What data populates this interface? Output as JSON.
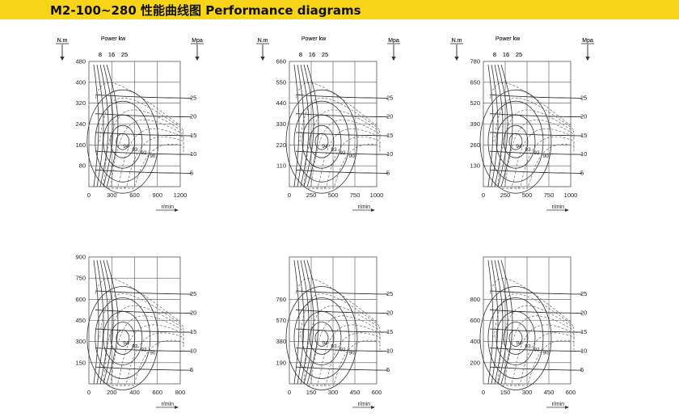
{
  "title": "M2-100~280 性能曲线图  Performance diagrams",
  "colors": {
    "header_bg": "#f7d417",
    "grid": "#555555",
    "solid_curve": "#333333",
    "dashed_curve": "#666666"
  },
  "chart_data": [
    {
      "type": "line",
      "y_unit": "N.m",
      "power_label": "Power kw",
      "pressure_unit": "Mpa",
      "x_unit": "r/min",
      "x_ticks": [
        0,
        300,
        600,
        900,
        1200
      ],
      "xlim": [
        0,
        1200
      ],
      "y_ticks": [
        80,
        160,
        240,
        320,
        400,
        480
      ],
      "ylim": [
        0,
        480
      ],
      "pressure_ticks": [
        5,
        10,
        15,
        20,
        25
      ],
      "power_ticks": [
        8,
        16,
        25
      ],
      "efficiency_labels": [
        94,
        93,
        92,
        90
      ]
    },
    {
      "type": "line",
      "y_unit": "N.m",
      "power_label": "Power kw",
      "pressure_unit": "Mpa",
      "x_unit": "r/min",
      "x_ticks": [
        0,
        250,
        500,
        750,
        1000
      ],
      "xlim": [
        0,
        1000
      ],
      "y_ticks": [
        110,
        220,
        330,
        440,
        550,
        660
      ],
      "ylim": [
        0,
        660
      ],
      "pressure_ticks": [
        5,
        10,
        15,
        20,
        25
      ],
      "power_ticks": [
        8,
        16,
        25
      ],
      "efficiency_labels": [
        94,
        93,
        92,
        90
      ]
    },
    {
      "type": "line",
      "y_unit": "N.m",
      "power_label": "Power kw",
      "pressure_unit": "Mpa",
      "x_unit": "r/min",
      "x_ticks": [
        0,
        250,
        500,
        750,
        1000
      ],
      "xlim": [
        0,
        1000
      ],
      "y_ticks": [
        130,
        260,
        390,
        520,
        650,
        780
      ],
      "ylim": [
        0,
        780
      ],
      "pressure_ticks": [
        5,
        10,
        15,
        20,
        25
      ],
      "power_ticks": [
        8,
        16,
        25
      ],
      "efficiency_labels": [
        94,
        93,
        92,
        90
      ]
    },
    {
      "type": "line",
      "y_unit": "N.m",
      "power_label": "Power kw",
      "pressure_unit": "Mpa",
      "x_unit": "r/min",
      "x_ticks": [
        0,
        200,
        400,
        600,
        800
      ],
      "xlim": [
        0,
        800
      ],
      "y_ticks": [
        150,
        300,
        450,
        600,
        750,
        900
      ],
      "ylim": [
        0,
        900
      ],
      "pressure_ticks": [
        5,
        10,
        15,
        20,
        25
      ],
      "power_ticks": [
        8,
        16,
        25
      ],
      "efficiency_labels": [
        94,
        93,
        92,
        90
      ]
    },
    {
      "type": "line",
      "y_unit": "N.m",
      "power_label": "Power kw",
      "pressure_unit": "Mpa",
      "x_unit": "r/min",
      "x_ticks": [
        0,
        150,
        300,
        450,
        600
      ],
      "xlim": [
        0,
        600
      ],
      "y_ticks": [
        190,
        380,
        570,
        760
      ],
      "ylim": [
        0,
        1140
      ],
      "pressure_ticks": [
        5,
        10,
        15,
        20,
        25
      ],
      "power_ticks": [
        8,
        16,
        25
      ],
      "efficiency_labels": [
        94,
        93,
        92,
        90
      ]
    },
    {
      "type": "line",
      "y_unit": "N.m",
      "power_label": "Power kw",
      "pressure_unit": "Mpa",
      "x_unit": "r/min",
      "x_ticks": [
        0,
        150,
        300,
        450,
        600
      ],
      "xlim": [
        0,
        600
      ],
      "y_ticks": [
        200,
        400,
        600,
        800
      ],
      "ylim": [
        0,
        1200
      ],
      "pressure_ticks": [
        5,
        10,
        15,
        20,
        25
      ],
      "power_ticks": [
        8,
        16,
        25
      ],
      "efficiency_labels": [
        94,
        93,
        92,
        90
      ]
    }
  ]
}
